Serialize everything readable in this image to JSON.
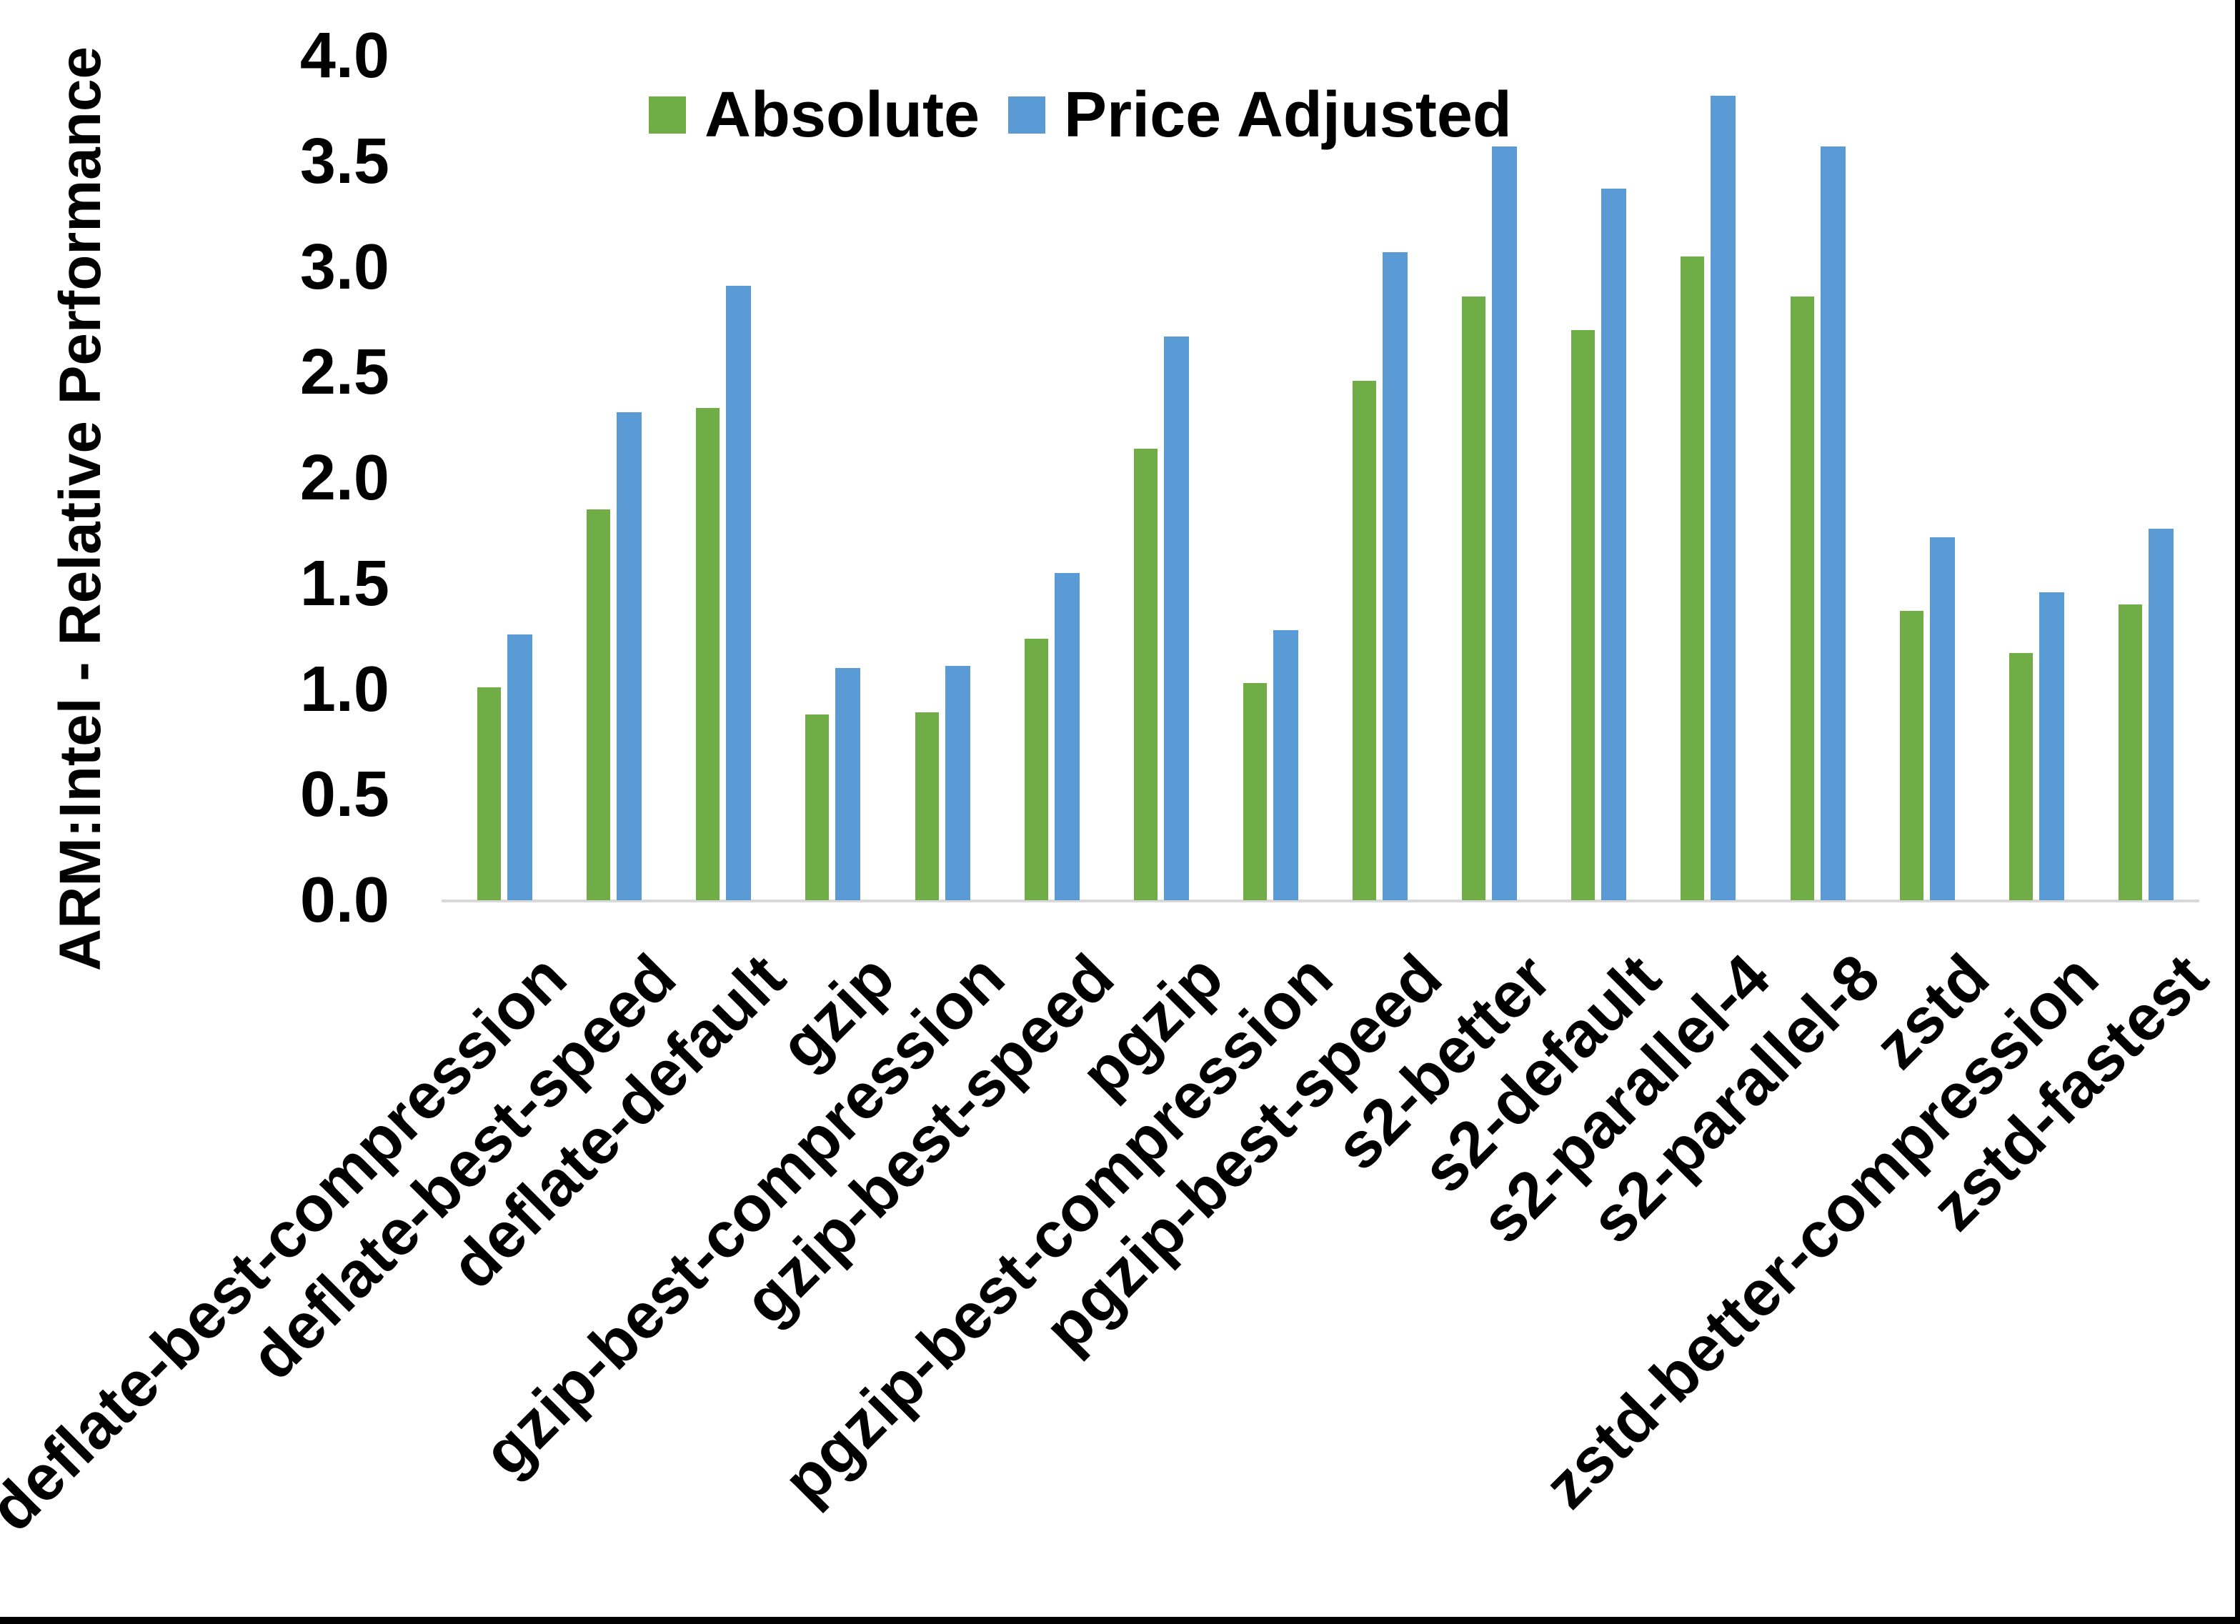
{
  "page": {
    "background": "#FFFFFF"
  },
  "chart_data": {
    "type": "bar",
    "title": "",
    "ylabel": "ARM:Intel - Relative Performance",
    "xlabel": "",
    "ylim": [
      0.0,
      4.0
    ],
    "ytick_step": 0.5,
    "yticks": [
      "0.0",
      "0.5",
      "1.0",
      "1.5",
      "2.0",
      "2.5",
      "3.0",
      "3.5",
      "4.0"
    ],
    "grid": false,
    "legend_position": "top-center",
    "x_label_rotation_deg": 45,
    "categories": [
      "deflate-best-compression",
      "deflate-best-speed",
      "deflate-default",
      "gzip",
      "gzip-best-compression",
      "gzip-best-speed",
      "pgzip",
      "pgzip-best-compression",
      "pgzip-best-speed",
      "s2-better",
      "s2-default",
      "s2-parallel-4",
      "s2-parallel-8",
      "zstd",
      "zstd-better-compression",
      "zstd-fastest"
    ],
    "series": [
      {
        "name": "Absolute",
        "color": "#70AD47",
        "values": [
          1.01,
          1.85,
          2.33,
          0.88,
          0.89,
          1.24,
          2.14,
          1.03,
          2.46,
          2.86,
          2.7,
          3.05,
          2.86,
          1.37,
          1.17,
          1.4
        ]
      },
      {
        "name": "Price Adjusted",
        "color": "#5B9BD5",
        "values": [
          1.26,
          2.31,
          2.91,
          1.1,
          1.11,
          1.55,
          2.67,
          1.28,
          3.07,
          3.57,
          3.37,
          3.81,
          3.57,
          1.72,
          1.46,
          1.76
        ]
      }
    ],
    "axis_line_color": "#D9D9D9",
    "text_color": "#000000",
    "frame_color": "#000000"
  }
}
